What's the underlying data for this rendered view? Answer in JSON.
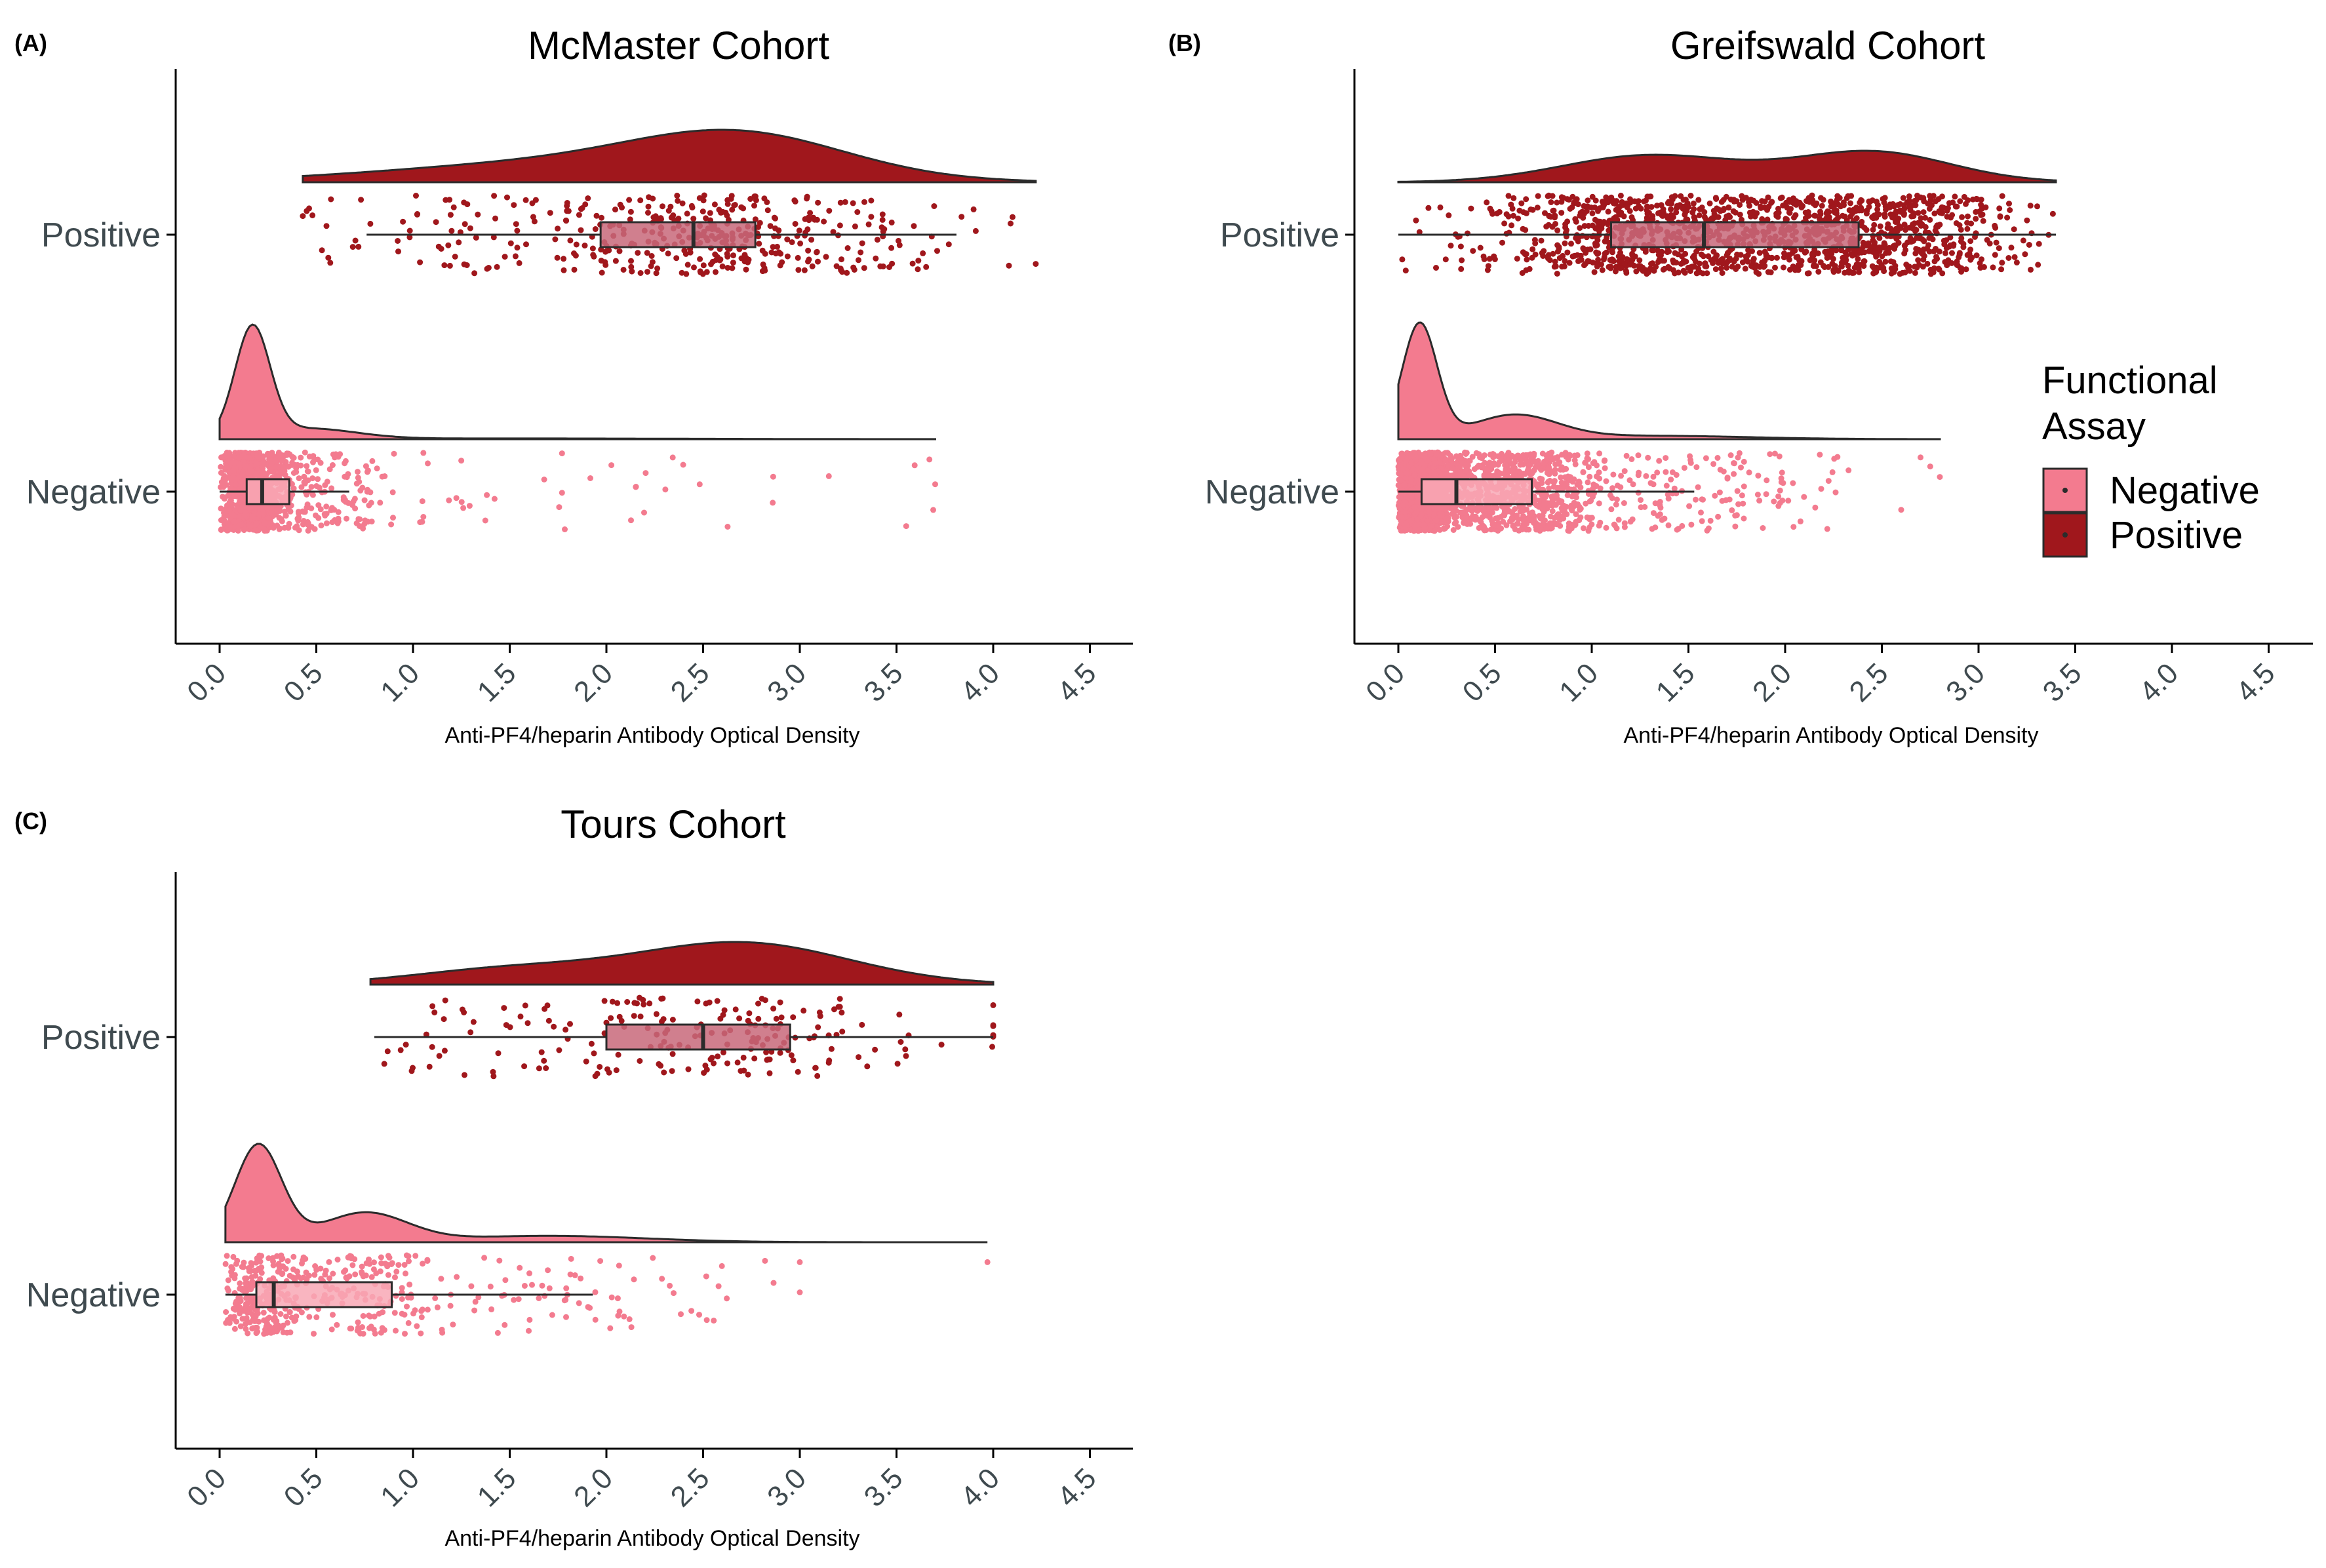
{
  "chart_data": [
    {
      "panel_tag": "(A)",
      "title": "McMaster Cohort",
      "type": "raincloud",
      "xlabel": "Anti-PF4/heparin Antibody Optical Density",
      "xlim": [
        -0.22,
        4.7
      ],
      "xticks": [
        "0.0",
        "0.5",
        "1.0",
        "1.5",
        "2.0",
        "2.5",
        "3.0",
        "3.5",
        "4.0",
        "4.5"
      ],
      "categories": [
        "Positive",
        "Negative"
      ],
      "series": [
        {
          "name": "Positive",
          "color": "#a0171c",
          "n_points": 420,
          "density_range": [
            0.43,
            4.22
          ],
          "density_peak_x": 2.7,
          "box": {
            "whisker_low": 0.76,
            "q1": 1.97,
            "median": 2.45,
            "q3": 2.77,
            "whisker_high": 3.81
          },
          "outliers": [
            0.43,
            0.45,
            0.48,
            3.71,
            4.09,
            4.1,
            4.22
          ]
        },
        {
          "name": "Negative",
          "color": "#f37b8f",
          "n_points": 1100,
          "density_range": [
            0.0,
            3.7
          ],
          "density_peak_x": 0.16,
          "box": {
            "whisker_low": 0.0,
            "q1": 0.14,
            "median": 0.22,
            "q3": 0.36,
            "whisker_high": 0.67
          },
          "outliers": [
            2.86,
            3.15,
            3.55,
            3.67,
            3.69,
            3.7
          ]
        }
      ]
    },
    {
      "panel_tag": "(B)",
      "title": "Greifswald Cohort",
      "type": "raincloud",
      "xlabel": "Anti-PF4/heparin Antibody Optical Density",
      "xlim": [
        -0.22,
        4.7
      ],
      "xticks": [
        "0.0",
        "0.5",
        "1.0",
        "1.5",
        "2.0",
        "2.5",
        "3.0",
        "3.5",
        "4.0",
        "4.5"
      ],
      "categories": [
        "Positive",
        "Negative"
      ],
      "series": [
        {
          "name": "Positive",
          "color": "#a0171c",
          "n_points": 1400,
          "density_range": [
            0.0,
            3.4
          ],
          "density_peak_x": 2.45,
          "box": {
            "whisker_low": 0.0,
            "q1": 1.1,
            "median": 1.58,
            "q3": 2.38,
            "whisker_high": 3.4
          },
          "outliers": []
        },
        {
          "name": "Negative",
          "color": "#f37b8f",
          "n_points": 2200,
          "density_range": [
            0.0,
            2.8
          ],
          "density_peak_x": 0.1,
          "box": {
            "whisker_low": 0.0,
            "q1": 0.12,
            "median": 0.3,
            "q3": 0.69,
            "whisker_high": 1.53
          },
          "outliers": [
            2.6,
            2.7,
            2.75,
            2.8
          ]
        }
      ]
    },
    {
      "panel_tag": "(C)",
      "title": "Tours Cohort",
      "type": "raincloud",
      "xlabel": "Anti-PF4/heparin Antibody Optical Density",
      "xlim": [
        -0.22,
        4.7
      ],
      "xticks": [
        "0.0",
        "0.5",
        "1.0",
        "1.5",
        "2.0",
        "2.5",
        "3.0",
        "3.5",
        "4.0",
        "4.5"
      ],
      "categories": [
        "Positive",
        "Negative"
      ],
      "series": [
        {
          "name": "Positive",
          "color": "#a0171c",
          "n_points": 200,
          "density_range": [
            0.78,
            4.0
          ],
          "density_peak_x": 2.75,
          "box": {
            "whisker_low": 0.8,
            "q1": 2.0,
            "median": 2.5,
            "q3": 2.95,
            "whisker_high": 4.0
          },
          "outliers": [
            4.0,
            4.0,
            4.0,
            4.0,
            4.0
          ]
        },
        {
          "name": "Negative",
          "color": "#f37b8f",
          "n_points": 480,
          "density_range": [
            0.03,
            3.97
          ],
          "density_peak_x": 0.2,
          "box": {
            "whisker_low": 0.03,
            "q1": 0.19,
            "median": 0.28,
            "q3": 0.89,
            "whisker_high": 1.93
          },
          "outliers": [
            2.58,
            2.82,
            3.0,
            3.0,
            3.97
          ]
        }
      ]
    }
  ],
  "legend": {
    "title_line1": "Functional",
    "title_line2": "Assay",
    "items": [
      {
        "label": "Negative",
        "color": "#f37b8f"
      },
      {
        "label": "Positive",
        "color": "#a0171c"
      }
    ]
  }
}
